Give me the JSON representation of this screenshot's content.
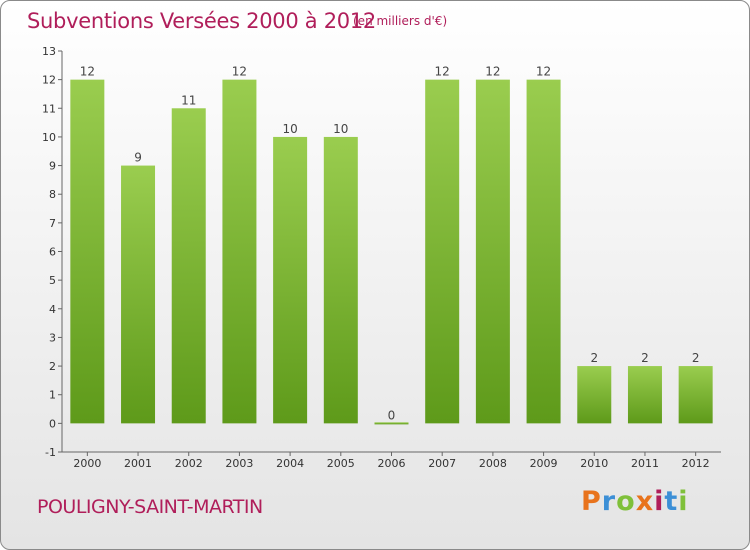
{
  "header": {
    "title": "Subventions Versées 2000 à 2012",
    "unit_note": "(en milliers d'€)"
  },
  "footer": {
    "commune": "POULIGNY-SAINT-MARTIN",
    "brand_letters": [
      "P",
      "r",
      "o",
      "x",
      "i",
      "t",
      "i"
    ],
    "brand_colors": [
      "#e8731c",
      "#3c8fd6",
      "#7fc03a",
      "#e8731c",
      "#b01e5a",
      "#3c8fd6",
      "#7fc03a"
    ]
  },
  "colors": {
    "bar_top": "#9acd4f",
    "bar_bottom": "#5e9a1a",
    "title": "#b01e5a"
  },
  "chart_data": {
    "type": "bar",
    "categories": [
      "2000",
      "2001",
      "2002",
      "2003",
      "2004",
      "2005",
      "2006",
      "2007",
      "2008",
      "2009",
      "2010",
      "2011",
      "2012"
    ],
    "values": [
      12,
      9,
      11,
      12,
      10,
      10,
      0,
      12,
      12,
      12,
      2,
      2,
      2
    ],
    "ylim": [
      -1,
      13
    ],
    "yticks": [
      -1,
      0,
      1,
      2,
      3,
      4,
      5,
      6,
      7,
      8,
      9,
      10,
      11,
      12,
      13
    ],
    "grid": false
  }
}
